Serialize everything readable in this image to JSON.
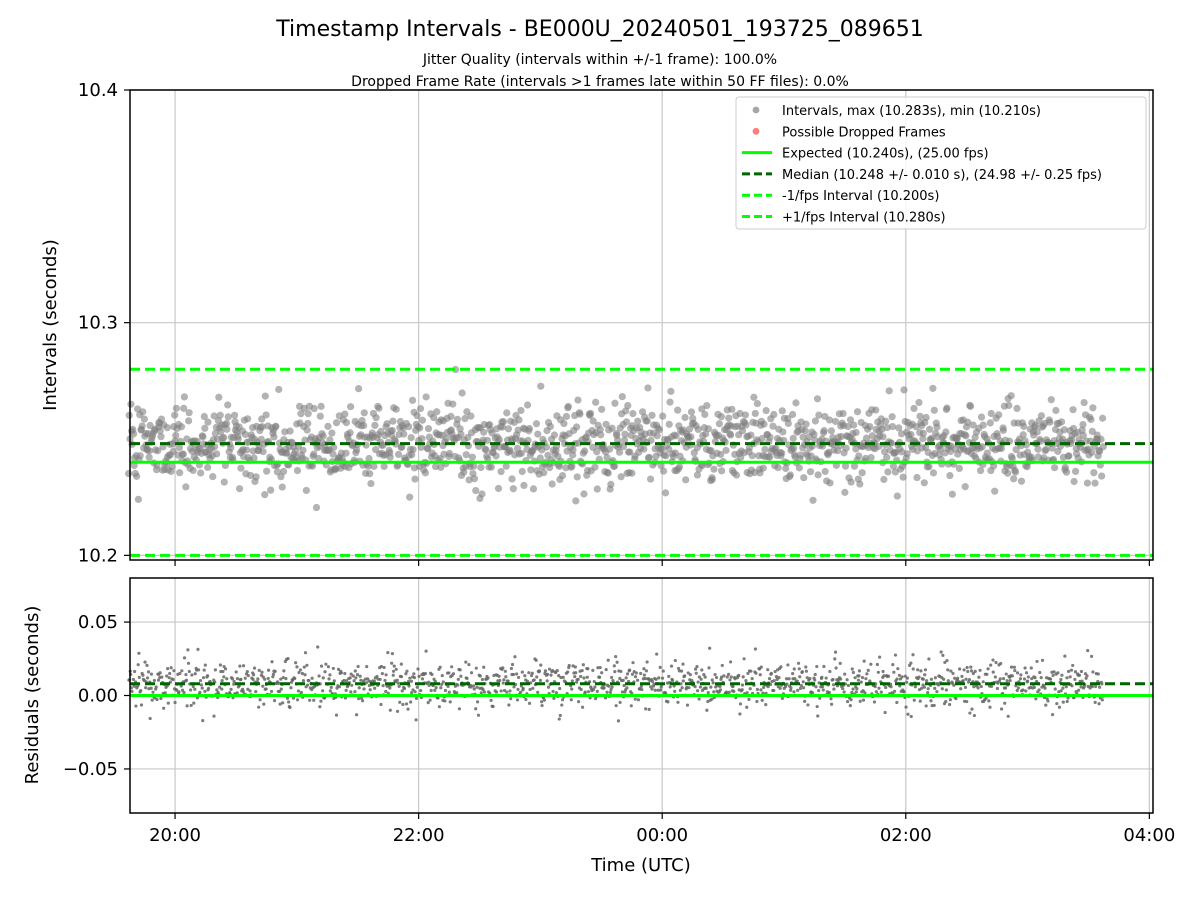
{
  "chart_data": [
    {
      "type": "scatter",
      "title": "Timestamp Intervals - BE000U_20240501_193725_089651",
      "subtitle_lines": [
        "Jitter Quality (intervals within +/-1 frame): 100.0%",
        "Dropped Frame Rate (intervals >1 frames late within 50 FF files): 0.0%"
      ],
      "xlabel": "Time (UTC)",
      "ylabel": "Intervals (seconds)",
      "xlim": [
        19.63,
        28.03
      ],
      "ylim": [
        10.198,
        10.4
      ],
      "x_ticks": [
        20,
        22,
        24,
        26,
        28
      ],
      "x_tick_labels": [
        "20:00",
        "22:00",
        "00:00",
        "02:00",
        "04:00"
      ],
      "y_ticks": [
        10.2,
        10.3,
        10.4
      ],
      "y_tick_labels": [
        "10.2",
        "10.3",
        "10.4"
      ],
      "grid": true,
      "legend_position": "top-right",
      "series": [
        {
          "name": "Intervals, max (10.283s), min (10.210s)",
          "kind": "points",
          "x_start": 19.62,
          "x_end": 27.62,
          "count": 1450,
          "center": 10.248,
          "spread": 0.012,
          "y_max": 10.283,
          "y_min": 10.21,
          "color": "#808080"
        },
        {
          "name": "Possible Dropped Frames",
          "kind": "points",
          "count": 0,
          "color": "#ff4444"
        }
      ],
      "reference_lines": [
        {
          "name": "Expected (10.240s), (25.00 fps)",
          "y": 10.24,
          "color": "#00ff00",
          "style": "solid"
        },
        {
          "name": "Median (10.248 +/- 0.010 s), (24.98 +/- 0.25 fps)",
          "y": 10.248,
          "color": "#006400",
          "style": "dashed"
        },
        {
          "name": "-1/fps Interval (10.200s)",
          "y": 10.2,
          "color": "#00ff00",
          "style": "dashed"
        },
        {
          "name": "+1/fps Interval (10.280s)",
          "y": 10.28,
          "color": "#00ff00",
          "style": "dashed"
        }
      ]
    },
    {
      "type": "scatter",
      "xlabel": "Time (UTC)",
      "ylabel": "Residuals (seconds)",
      "xlim": [
        19.63,
        28.03
      ],
      "ylim": [
        -0.08,
        0.08
      ],
      "x_ticks": [
        20,
        22,
        24,
        26,
        28
      ],
      "x_tick_labels": [
        "20:00",
        "22:00",
        "00:00",
        "02:00",
        "04:00"
      ],
      "y_ticks": [
        -0.05,
        0.0,
        0.05
      ],
      "y_tick_labels": [
        "−0.05",
        "0.00",
        "0.05"
      ],
      "grid": true,
      "series": [
        {
          "kind": "points",
          "x_start": 19.62,
          "x_end": 27.62,
          "count": 1450,
          "center": 0.008,
          "spread": 0.011,
          "y_max": 0.043,
          "y_min": -0.03,
          "color": "#666666"
        }
      ],
      "reference_lines": [
        {
          "y": 0.0,
          "color": "#00ff00",
          "style": "solid"
        },
        {
          "y": 0.008,
          "color": "#006400",
          "style": "dashed"
        }
      ]
    }
  ]
}
